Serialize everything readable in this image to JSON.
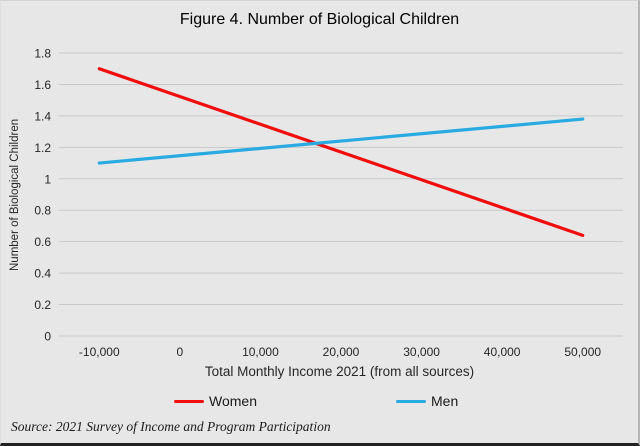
{
  "title": "Figure 4. Number of Biological Children",
  "source_note": "Source: 2021 Survey of Income and Program Participation",
  "colors": {
    "background": "#e7e7e7",
    "gridline": "#c9c9c9",
    "women_line": "#f20d0d",
    "men_line": "#29abe2",
    "text": "#262626",
    "bottom_border": "#222222"
  },
  "chart_data": {
    "type": "line",
    "title": "Figure 4. Number of Biological Children",
    "xlabel": "Total Monthly Income 2021 (from all sources)",
    "ylabel": "Number of Biological Children",
    "x": [
      -10000,
      50000
    ],
    "series": [
      {
        "name": "Women",
        "color": "#f20d0d",
        "values": [
          1.7,
          0.64
        ]
      },
      {
        "name": "Men",
        "color": "#29abe2",
        "values": [
          1.1,
          1.38
        ]
      }
    ],
    "xticks": [
      "-10,000",
      "0",
      "10,000",
      "20,000",
      "30,000",
      "40,000",
      "50,000"
    ],
    "xtick_values": [
      -10000,
      0,
      10000,
      20000,
      30000,
      40000,
      50000
    ],
    "yticks": [
      "1.8",
      "1.6",
      "1.4",
      "1.2",
      "1",
      "0.8",
      "0.6",
      "0.4",
      "0.2",
      "0"
    ],
    "ytick_values": [
      1.8,
      1.6,
      1.4,
      1.2,
      1.0,
      0.8,
      0.6,
      0.4,
      0.2,
      0
    ],
    "ylim": [
      0,
      1.8
    ],
    "grid": "horizontal",
    "legend_position": "bottom"
  }
}
